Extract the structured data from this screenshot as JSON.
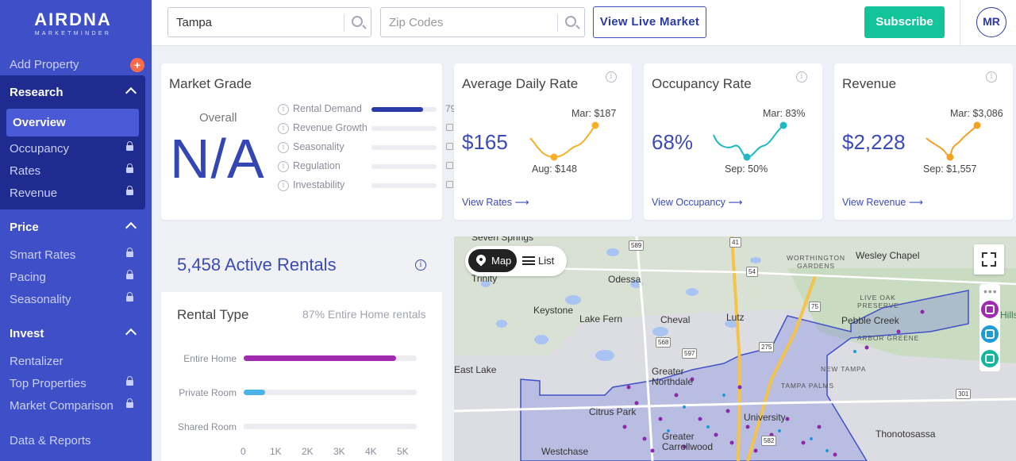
{
  "brand": {
    "name": "AIRDNA",
    "tagline": "MARKETMINDER"
  },
  "sidebar": {
    "add_property": "Add Property",
    "add_plus": "+",
    "research": {
      "title": "Research",
      "items": [
        {
          "label": "Overview"
        },
        {
          "label": "Occupancy"
        },
        {
          "label": "Rates"
        },
        {
          "label": "Revenue"
        }
      ]
    },
    "price": {
      "title": "Price",
      "items": [
        {
          "label": "Smart Rates"
        },
        {
          "label": "Pacing"
        },
        {
          "label": "Seasonality"
        }
      ]
    },
    "invest": {
      "title": "Invest",
      "items": [
        {
          "label": "Rentalizer"
        },
        {
          "label": "Top Properties"
        },
        {
          "label": "Market Comparison"
        }
      ]
    },
    "data_reports": "Data & Reports"
  },
  "topbar": {
    "search_value": "Tampa",
    "zip_placeholder": "Zip Codes",
    "view_live_market": "View Live Market",
    "subscribe": "Subscribe",
    "avatar_initials": "MR"
  },
  "market_grade": {
    "title": "Market Grade",
    "overall_label": "Overall",
    "overall_value": "N/A",
    "rows": [
      {
        "label": "Rental Demand",
        "value": "79",
        "level": 0.79
      },
      {
        "label": "Revenue Growth",
        "value": "",
        "level": 0
      },
      {
        "label": "Seasonality",
        "value": "",
        "level": 0
      },
      {
        "label": "Regulation",
        "value": "",
        "level": 0
      },
      {
        "label": "Investability",
        "value": "",
        "level": 0
      }
    ]
  },
  "adr": {
    "title": "Average Daily Rate",
    "value": "$165",
    "high": "Mar: $187",
    "low": "Aug: $148",
    "link": "View Rates ⟶",
    "color": "#f5b027"
  },
  "occupancy": {
    "title": "Occupancy Rate",
    "value": "68%",
    "high": "Mar: 83%",
    "low": "Sep: 50%",
    "link": "View Occupancy ⟶",
    "color": "#1fb8c4"
  },
  "revenue": {
    "title": "Revenue",
    "value": "$2,228",
    "high": "Mar: $3,086",
    "low": "Sep: $1,557",
    "link": "View Revenue ⟶",
    "color": "#f5a021"
  },
  "rentals": {
    "title": "5,458 Active Rentals",
    "rental_type": "Rental Type",
    "note": "87% Entire Home rentals",
    "bars": [
      {
        "label": "Entire Home",
        "value": 4750,
        "color": "#a02bb1"
      },
      {
        "label": "Private Room",
        "value": 680,
        "color": "#4ab3e8"
      },
      {
        "label": "Shared Room",
        "value": 28,
        "color": "#ececf0"
      }
    ],
    "x_ticks": [
      "0",
      "1K",
      "2K",
      "3K",
      "4K",
      "5K"
    ],
    "x_max": 5400
  },
  "map": {
    "map_btn": "Map",
    "list_btn": "List",
    "labels": [
      "Seven Springs",
      "Trinity",
      "Odessa",
      "Keystone",
      "Lake Fern",
      "Cheval",
      "Lutz",
      "Wesley Chapel",
      "Pebble Creek",
      "East Lake",
      "Greater Northdale",
      "Citrus Park",
      "University",
      "Greater Carrollwood",
      "Westchase",
      "Thonotosassa",
      "Hillsborough River State"
    ],
    "area_labels": [
      "WORTHINGTON GARDENS",
      "LIVE OAK PRESERVE",
      "ARBOR GREENE",
      "NEW TAMPA",
      "TAMPA PALMS"
    ],
    "shields": [
      "589",
      "41",
      "54",
      "568",
      "597",
      "275",
      "75",
      "582",
      "301"
    ]
  }
}
